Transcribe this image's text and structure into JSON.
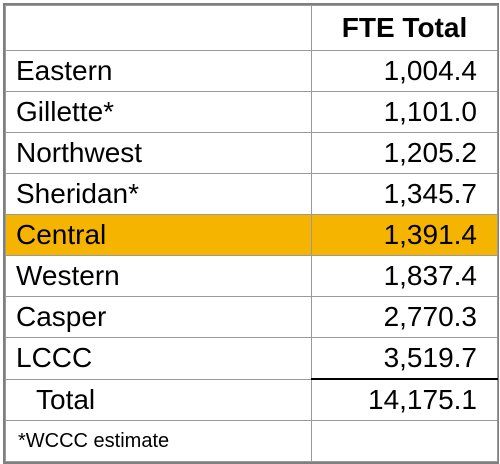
{
  "table": {
    "header": "FTE Total",
    "rows": [
      {
        "name": "Eastern",
        "value": "1,004.4"
      },
      {
        "name": "Gillette*",
        "value": "1,101.0"
      },
      {
        "name": "Northwest",
        "value": "1,205.2"
      },
      {
        "name": "Sheridan*",
        "value": "1,345.7"
      },
      {
        "name": "Central",
        "value": "1,391.4",
        "highlighted": true
      },
      {
        "name": "Western",
        "value": "1,837.4"
      },
      {
        "name": "Casper",
        "value": "2,770.3"
      },
      {
        "name": "LCCC",
        "value": "3,519.7"
      }
    ],
    "total": {
      "label": "Total",
      "value": "14,175.1"
    },
    "footnote": "*WCCC estimate",
    "highlight_color": "#f5b400"
  }
}
